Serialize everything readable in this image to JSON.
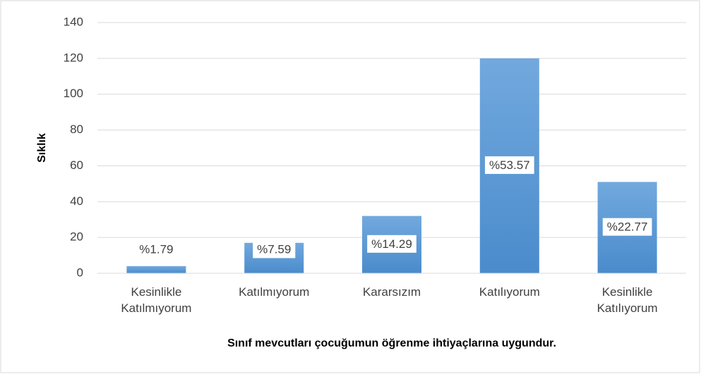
{
  "chart_data": {
    "type": "bar",
    "x_label": "Sınıf mevcutları çocuğumun öğrenme ihtiyaçlarına uygundur.",
    "y_label": "Sıklık",
    "categories": [
      "Kesinlikle Katılmıyorum",
      "Katılmıyorum",
      "Kararsızım",
      "Katılıyorum",
      "Kesinlikle Katılıyorum"
    ],
    "values": [
      4,
      17,
      32,
      120,
      51
    ],
    "value_labels": [
      "%1.79",
      "%7.59",
      "%14.29",
      "%53.57",
      "%22.77"
    ],
    "color": "#5b9bd5",
    "ylim": [
      0,
      140
    ],
    "yticks": [
      0,
      20,
      40,
      60,
      80,
      100,
      120,
      140
    ],
    "grid": true
  }
}
